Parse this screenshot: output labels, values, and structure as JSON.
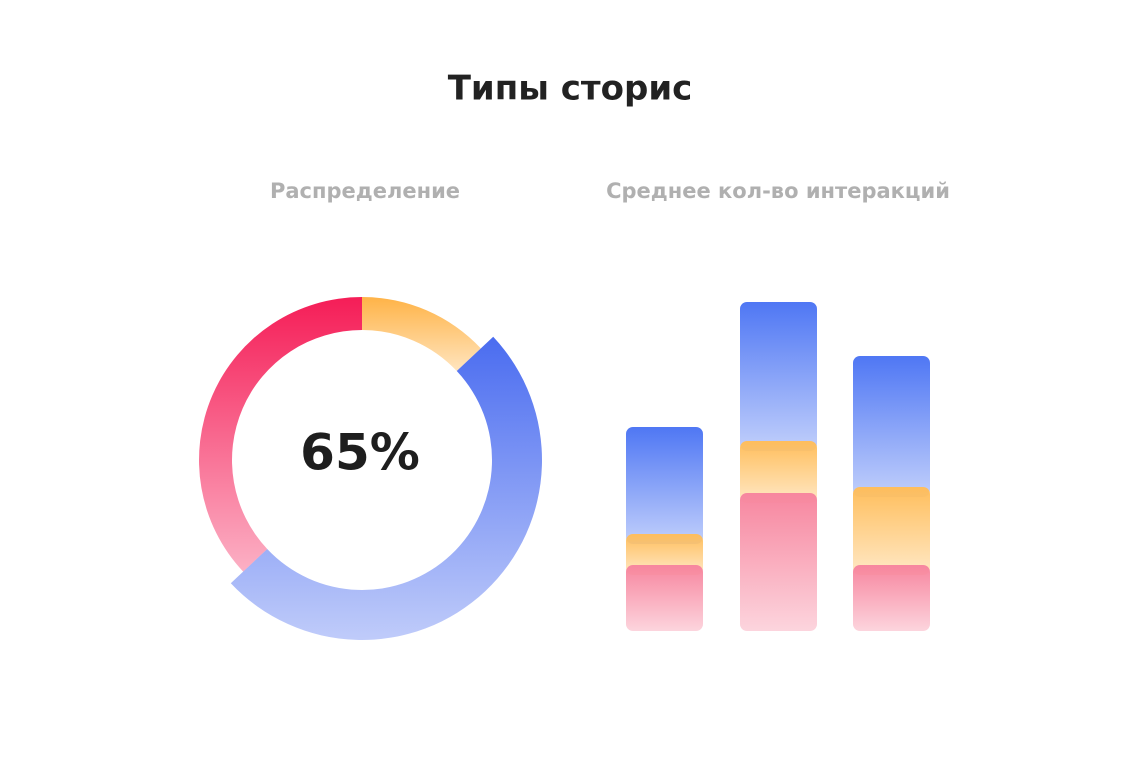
{
  "title": "Типы сторис",
  "chart_data": [
    {
      "type": "donut",
      "title": "Распределение",
      "center_label": "65%",
      "values": [
        13,
        50,
        37
      ],
      "colors": [
        "#ffb347",
        "#4a6cf0",
        "#f51d57"
      ]
    },
    {
      "type": "bar",
      "stacked": true,
      "title": "Среднее кол-во интеракций",
      "categories": [
        null,
        null,
        null
      ],
      "ylim": [
        0,
        330
      ],
      "series": [
        {
          "color": "#f7869f",
          "values": [
            66,
            138,
            66
          ]
        },
        {
          "color": "#ffbe5c",
          "values": [
            31,
            52,
            78
          ]
        },
        {
          "color": "#4f77f4",
          "values": [
            107,
            139,
            131
          ]
        }
      ]
    }
  ]
}
